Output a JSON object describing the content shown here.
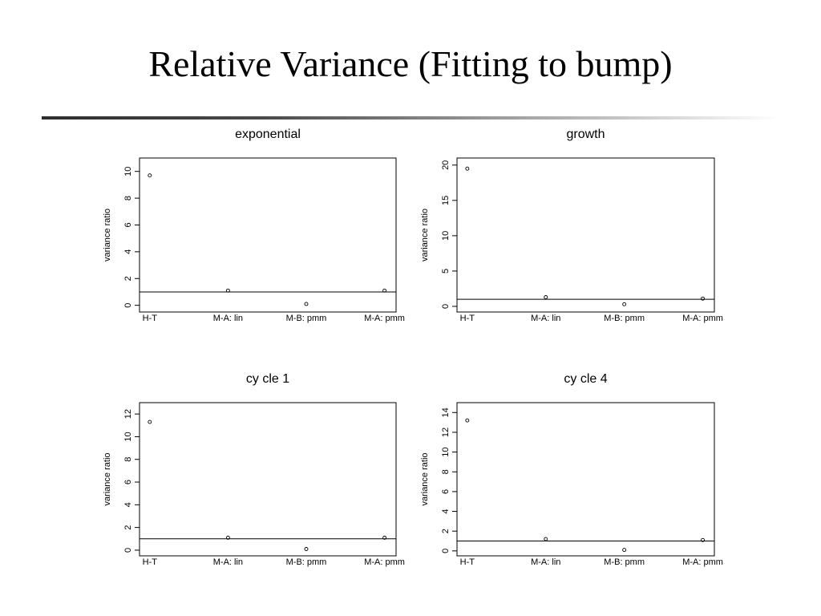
{
  "slide": {
    "title": "Relative Variance (Fitting to bump)"
  },
  "colors": {
    "ink": "#000000",
    "background": "#ffffff"
  },
  "chart_data": [
    {
      "type": "scatter",
      "title": "exponential",
      "ylabel": "variance ratio",
      "categories": [
        "H-T",
        "M-A: lin",
        "M-B: pmm",
        "M-A: pmm"
      ],
      "values": [
        9.7,
        1.1,
        0.1,
        1.1
      ],
      "yticks": [
        0,
        2,
        4,
        6,
        8,
        10
      ],
      "ylim": [
        -0.5,
        11.0
      ],
      "reference_line": 1
    },
    {
      "type": "scatter",
      "title": "growth",
      "ylabel": "variance ratio",
      "categories": [
        "H-T",
        "M-A: lin",
        "M-B: pmm",
        "M-A: pmm"
      ],
      "values": [
        19.5,
        1.3,
        0.3,
        1.1
      ],
      "yticks": [
        0,
        5,
        10,
        15,
        20
      ],
      "ylim": [
        -0.8,
        21.0
      ],
      "reference_line": 1
    },
    {
      "type": "scatter",
      "title": "cy cle 1",
      "ylabel": "variance ratio",
      "categories": [
        "H-T",
        "M-A: lin",
        "M-B: pmm",
        "M-A: pmm"
      ],
      "values": [
        11.3,
        1.1,
        0.1,
        1.1
      ],
      "yticks": [
        0,
        2,
        4,
        6,
        8,
        10,
        12
      ],
      "ylim": [
        -0.5,
        13.0
      ],
      "reference_line": 1
    },
    {
      "type": "scatter",
      "title": "cy cle 4",
      "ylabel": "variance ratio",
      "categories": [
        "H-T",
        "M-A: lin",
        "M-B: pmm",
        "M-A: pmm"
      ],
      "values": [
        13.2,
        1.2,
        0.1,
        1.1
      ],
      "yticks": [
        0,
        2,
        4,
        6,
        8,
        10,
        12,
        14
      ],
      "ylim": [
        -0.5,
        15.0
      ],
      "reference_line": 1
    }
  ]
}
